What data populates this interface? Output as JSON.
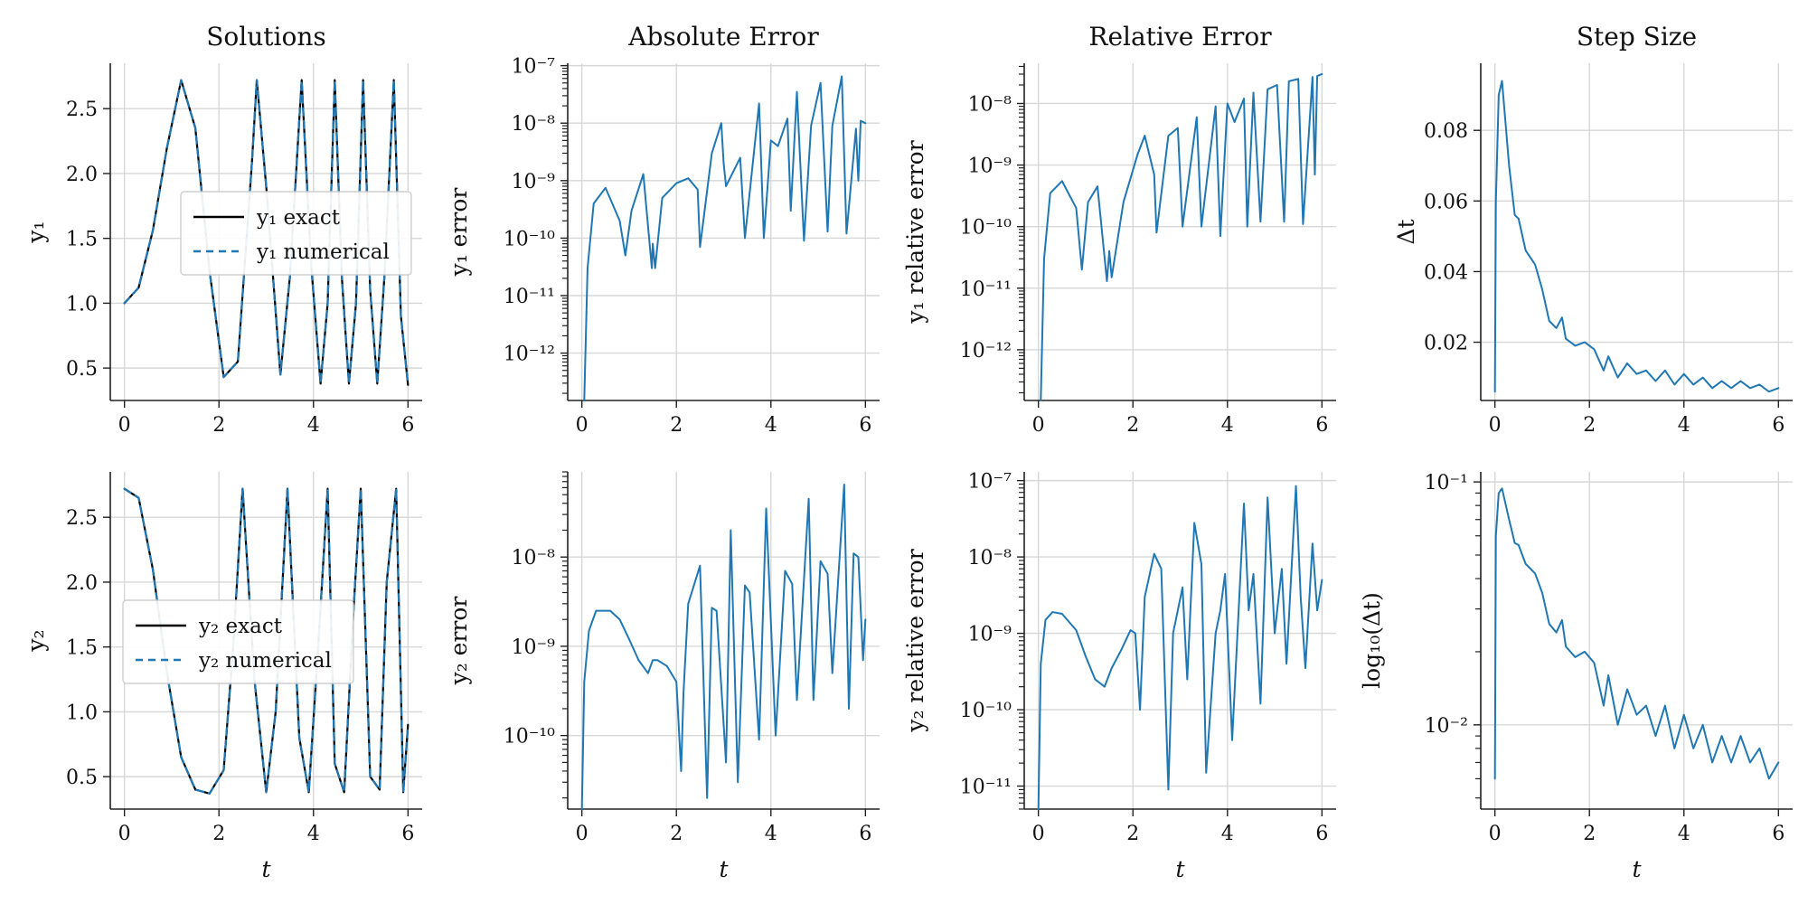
{
  "colors": {
    "series": "#1f77b4",
    "exact": "#000000",
    "grid": "#d7d7d7",
    "axis": "#222222"
  },
  "chart_data": [
    {
      "id": "solutions_y1",
      "type": "line",
      "title": "Solutions",
      "xlabel": "",
      "ylabel": "y₁",
      "xlim": [
        -0.3,
        6.3
      ],
      "ylim": [
        0.25,
        2.85
      ],
      "xticks": [
        0,
        2,
        4,
        6
      ],
      "xtick_labels": [
        "0",
        "2",
        "4",
        "6"
      ],
      "yticks": [
        0.5,
        1.0,
        1.5,
        2.0,
        2.5
      ],
      "ytick_labels": [
        "0.5",
        "1.0",
        "1.5",
        "2.0",
        "2.5"
      ],
      "grid": true,
      "legend_position": "center-right",
      "series": [
        {
          "name": "y₁ exact",
          "style": "solid",
          "color": "#000000",
          "x": [
            0.0,
            0.3,
            0.6,
            0.9,
            1.2,
            1.5,
            1.8,
            2.1,
            2.4,
            2.7,
            2.8,
            3.0,
            3.3,
            3.5,
            3.75,
            3.95,
            4.15,
            4.3,
            4.45,
            4.6,
            4.75,
            4.9,
            5.05,
            5.2,
            5.35,
            5.5,
            5.7,
            5.85,
            6.0
          ],
          "values": [
            1.0,
            1.12,
            1.56,
            2.2,
            2.72,
            2.35,
            1.25,
            0.43,
            0.55,
            2.1,
            2.72,
            1.9,
            0.45,
            1.2,
            2.72,
            1.3,
            0.38,
            1.0,
            2.72,
            1.2,
            0.38,
            1.0,
            2.72,
            1.1,
            0.38,
            1.2,
            2.72,
            0.9,
            0.37
          ]
        },
        {
          "name": "y₁ numerical",
          "style": "dashed",
          "color": "#1f77b4",
          "x": [
            0.0,
            0.3,
            0.6,
            0.9,
            1.2,
            1.5,
            1.8,
            2.1,
            2.4,
            2.7,
            2.8,
            3.0,
            3.3,
            3.5,
            3.75,
            3.95,
            4.15,
            4.3,
            4.45,
            4.6,
            4.75,
            4.9,
            5.05,
            5.2,
            5.35,
            5.5,
            5.7,
            5.85,
            6.0
          ],
          "values": [
            1.0,
            1.12,
            1.56,
            2.2,
            2.72,
            2.35,
            1.25,
            0.43,
            0.55,
            2.1,
            2.72,
            1.9,
            0.45,
            1.2,
            2.72,
            1.3,
            0.38,
            1.0,
            2.72,
            1.2,
            0.38,
            1.0,
            2.72,
            1.1,
            0.38,
            1.2,
            2.72,
            0.9,
            0.37
          ]
        }
      ]
    },
    {
      "id": "absolute_error_y1",
      "type": "line",
      "title": "Absolute Error",
      "xlabel": "",
      "ylabel": "y₁ error",
      "xlim": [
        -0.3,
        6.3
      ],
      "ylim": [
        1.5e-13,
        1.1e-07
      ],
      "log_y": true,
      "xticks": [
        0,
        2,
        4,
        6
      ],
      "xtick_labels": [
        "0",
        "2",
        "4",
        "6"
      ],
      "yticks": [
        1e-12,
        1e-11,
        1e-10,
        1e-09,
        1e-08,
        1e-07
      ],
      "ytick_labels": [
        "10⁻¹²",
        "10⁻¹¹",
        "10⁻¹⁰",
        "10⁻⁹",
        "10⁻⁸",
        "10⁻⁷"
      ],
      "grid": true,
      "series": [
        {
          "name": "",
          "color": "#1f77b4",
          "x": [
            0.05,
            0.12,
            0.25,
            0.5,
            0.8,
            0.92,
            1.05,
            1.3,
            1.48,
            1.5,
            1.55,
            1.7,
            2.0,
            2.25,
            2.45,
            2.5,
            2.75,
            2.95,
            3.0,
            3.05,
            3.35,
            3.45,
            3.75,
            3.85,
            4.0,
            4.15,
            4.35,
            4.42,
            4.55,
            4.7,
            4.85,
            5.05,
            5.2,
            5.3,
            5.5,
            5.6,
            5.8,
            5.85,
            5.9,
            6.0
          ],
          "values": [
            1.5e-13,
            3e-11,
            4e-10,
            7.5e-10,
            2e-10,
            5e-11,
            3e-10,
            1.3e-09,
            3e-11,
            8e-11,
            3e-11,
            5e-10,
            9e-10,
            1.1e-09,
            7e-10,
            7e-11,
            3e-09,
            1e-08,
            2e-09,
            8e-10,
            2.5e-09,
            1e-10,
            2.2e-08,
            1e-10,
            5e-09,
            4e-09,
            1.2e-08,
            3e-10,
            3.5e-08,
            9e-11,
            9e-09,
            5e-08,
            1.3e-10,
            9e-09,
            6.5e-08,
            1.2e-10,
            8e-09,
            1e-09,
            1.1e-08,
            1e-08
          ]
        }
      ]
    },
    {
      "id": "relative_error_y1",
      "type": "line",
      "title": "Relative Error",
      "xlabel": "",
      "ylabel": "y₁ relative error",
      "xlim": [
        -0.3,
        6.3
      ],
      "ylim": [
        1.5e-13,
        4.5e-08
      ],
      "log_y": true,
      "xticks": [
        0,
        2,
        4,
        6
      ],
      "xtick_labels": [
        "0",
        "2",
        "4",
        "6"
      ],
      "yticks": [
        1e-12,
        1e-11,
        1e-10,
        1e-09,
        1e-08
      ],
      "ytick_labels": [
        "10⁻¹²",
        "10⁻¹¹",
        "10⁻¹⁰",
        "10⁻⁹",
        "10⁻⁸"
      ],
      "grid": true,
      "series": [
        {
          "name": "",
          "color": "#1f77b4",
          "x": [
            0.05,
            0.12,
            0.25,
            0.5,
            0.8,
            0.92,
            1.05,
            1.25,
            1.45,
            1.5,
            1.55,
            1.8,
            2.1,
            2.25,
            2.45,
            2.5,
            2.75,
            2.95,
            3.05,
            3.35,
            3.45,
            3.75,
            3.85,
            4.0,
            4.15,
            4.35,
            4.42,
            4.55,
            4.7,
            4.85,
            5.05,
            5.2,
            5.3,
            5.5,
            5.6,
            5.8,
            5.85,
            5.9,
            6.0
          ],
          "values": [
            1.5e-13,
            3e-11,
            3.5e-10,
            5.5e-10,
            2e-10,
            2e-11,
            2.5e-10,
            4.5e-10,
            1.3e-11,
            4e-11,
            1.5e-11,
            2.5e-10,
            1.5e-09,
            3e-09,
            7e-10,
            8e-11,
            3e-09,
            4e-09,
            1e-10,
            6e-09,
            1e-10,
            9e-09,
            7e-11,
            1e-08,
            5e-09,
            1.2e-08,
            1e-10,
            1.5e-08,
            1.2e-10,
            1.7e-08,
            2e-08,
            1.2e-10,
            2.3e-08,
            2.5e-08,
            1.1e-10,
            2.7e-08,
            7e-10,
            2.8e-08,
            3e-08
          ]
        }
      ]
    },
    {
      "id": "step_size_top",
      "type": "line",
      "title": "Step Size",
      "xlabel": "",
      "ylabel": "Δt",
      "xlim": [
        -0.3,
        6.3
      ],
      "ylim": [
        0.0035,
        0.099
      ],
      "xticks": [
        0,
        2,
        4,
        6
      ],
      "xtick_labels": [
        "0",
        "2",
        "4",
        "6"
      ],
      "yticks": [
        0.02,
        0.04,
        0.06,
        0.08
      ],
      "ytick_labels": [
        "0.02",
        "0.04",
        "0.06",
        "0.08"
      ],
      "grid": true,
      "series": [
        {
          "name": "",
          "color": "#1f77b4",
          "x": [
            0.0,
            0.02,
            0.08,
            0.15,
            0.3,
            0.42,
            0.5,
            0.65,
            0.85,
            1.0,
            1.15,
            1.3,
            1.42,
            1.5,
            1.7,
            1.9,
            2.1,
            2.3,
            2.4,
            2.6,
            2.8,
            3.0,
            3.2,
            3.4,
            3.6,
            3.8,
            4.0,
            4.2,
            4.4,
            4.6,
            4.8,
            5.0,
            5.2,
            5.4,
            5.6,
            5.8,
            6.0
          ],
          "values": [
            0.006,
            0.06,
            0.09,
            0.094,
            0.07,
            0.056,
            0.055,
            0.046,
            0.042,
            0.035,
            0.026,
            0.024,
            0.027,
            0.021,
            0.019,
            0.02,
            0.018,
            0.012,
            0.016,
            0.01,
            0.014,
            0.011,
            0.012,
            0.009,
            0.012,
            0.008,
            0.011,
            0.008,
            0.01,
            0.007,
            0.009,
            0.007,
            0.009,
            0.007,
            0.008,
            0.006,
            0.007
          ]
        }
      ]
    },
    {
      "id": "solutions_y2",
      "type": "line",
      "title": "",
      "xlabel": "t",
      "ylabel": "y₂",
      "xlim": [
        -0.3,
        6.3
      ],
      "ylim": [
        0.25,
        2.85
      ],
      "xticks": [
        0,
        2,
        4,
        6
      ],
      "xtick_labels": [
        "0",
        "2",
        "4",
        "6"
      ],
      "yticks": [
        0.5,
        1.0,
        1.5,
        2.0,
        2.5
      ],
      "ytick_labels": [
        "0.5",
        "1.0",
        "1.5",
        "2.0",
        "2.5"
      ],
      "grid": true,
      "legend_position": "center-left",
      "series": [
        {
          "name": "y₂ exact",
          "style": "solid",
          "color": "#000000",
          "x": [
            0.0,
            0.3,
            0.6,
            0.9,
            1.2,
            1.5,
            1.8,
            2.1,
            2.3,
            2.5,
            2.75,
            3.0,
            3.2,
            3.45,
            3.7,
            3.9,
            4.1,
            4.3,
            4.45,
            4.65,
            4.85,
            5.0,
            5.2,
            5.4,
            5.55,
            5.75,
            5.9,
            6.0
          ],
          "values": [
            2.72,
            2.65,
            2.1,
            1.3,
            0.65,
            0.4,
            0.37,
            0.55,
            1.5,
            2.72,
            1.25,
            0.38,
            1.0,
            2.72,
            0.8,
            0.38,
            1.5,
            2.72,
            0.6,
            0.38,
            1.8,
            2.72,
            0.5,
            0.4,
            2.0,
            2.72,
            0.38,
            0.9
          ]
        },
        {
          "name": "y₂ numerical",
          "style": "dashed",
          "color": "#1f77b4",
          "x": [
            0.0,
            0.3,
            0.6,
            0.9,
            1.2,
            1.5,
            1.8,
            2.1,
            2.3,
            2.5,
            2.75,
            3.0,
            3.2,
            3.45,
            3.7,
            3.9,
            4.1,
            4.3,
            4.45,
            4.65,
            4.85,
            5.0,
            5.2,
            5.4,
            5.55,
            5.75,
            5.9,
            6.0
          ],
          "values": [
            2.72,
            2.65,
            2.1,
            1.3,
            0.65,
            0.4,
            0.37,
            0.55,
            1.5,
            2.72,
            1.25,
            0.38,
            1.0,
            2.72,
            0.8,
            0.38,
            1.5,
            2.72,
            0.6,
            0.38,
            1.8,
            2.72,
            0.5,
            0.4,
            2.0,
            2.72,
            0.38,
            0.9
          ]
        }
      ]
    },
    {
      "id": "absolute_error_y2",
      "type": "line",
      "title": "",
      "xlabel": "t",
      "ylabel": "y₂ error",
      "xlim": [
        -0.3,
        6.3
      ],
      "ylim": [
        1.5e-11,
        9e-08
      ],
      "log_y": true,
      "xticks": [
        0,
        2,
        4,
        6
      ],
      "xtick_labels": [
        "0",
        "2",
        "4",
        "6"
      ],
      "yticks": [
        1e-10,
        1e-09,
        1e-08
      ],
      "ytick_labels": [
        "10⁻¹⁰",
        "10⁻⁹",
        "10⁻⁸"
      ],
      "grid": true,
      "series": [
        {
          "name": "",
          "color": "#1f77b4",
          "x": [
            0.0,
            0.05,
            0.15,
            0.3,
            0.6,
            0.8,
            1.0,
            1.2,
            1.4,
            1.5,
            1.6,
            1.8,
            2.0,
            2.1,
            2.15,
            2.25,
            2.5,
            2.65,
            2.75,
            2.85,
            3.05,
            3.15,
            3.3,
            3.45,
            3.55,
            3.75,
            3.9,
            4.1,
            4.3,
            4.45,
            4.55,
            4.8,
            4.9,
            5.05,
            5.2,
            5.3,
            5.55,
            5.65,
            5.75,
            5.85,
            5.95,
            6.0
          ],
          "values": [
            1.5e-11,
            4e-10,
            1.5e-09,
            2.5e-09,
            2.5e-09,
            2e-09,
            1.2e-09,
            7e-10,
            5e-10,
            7e-10,
            7e-10,
            6e-10,
            4e-10,
            4e-11,
            3e-10,
            3e-09,
            8e-09,
            2e-11,
            2.7e-09,
            2.5e-09,
            5e-11,
            2e-08,
            3e-11,
            4.8e-09,
            4e-09,
            9e-11,
            3.5e-08,
            1e-10,
            7e-09,
            5e-09,
            2.5e-10,
            4.5e-08,
            2.5e-10,
            9e-09,
            6.5e-09,
            5e-10,
            6.5e-08,
            2e-10,
            1.1e-08,
            1e-08,
            7e-10,
            2e-09
          ]
        }
      ]
    },
    {
      "id": "relative_error_y2",
      "type": "line",
      "title": "",
      "xlabel": "t",
      "ylabel": "y₂ relative error",
      "xlim": [
        -0.3,
        6.3
      ],
      "ylim": [
        5e-12,
        1.3e-07
      ],
      "log_y": true,
      "xticks": [
        0,
        2,
        4,
        6
      ],
      "xtick_labels": [
        "0",
        "2",
        "4",
        "6"
      ],
      "yticks": [
        1e-11,
        1e-10,
        1e-09,
        1e-08,
        1e-07
      ],
      "ytick_labels": [
        "10⁻¹¹",
        "10⁻¹⁰",
        "10⁻⁹",
        "10⁻⁸",
        "10⁻⁷"
      ],
      "grid": true,
      "series": [
        {
          "name": "",
          "color": "#1f77b4",
          "x": [
            0.0,
            0.05,
            0.15,
            0.3,
            0.5,
            0.8,
            1.0,
            1.2,
            1.4,
            1.55,
            1.75,
            1.95,
            2.05,
            2.15,
            2.25,
            2.45,
            2.6,
            2.75,
            2.85,
            3.05,
            3.15,
            3.3,
            3.45,
            3.55,
            3.75,
            3.85,
            3.95,
            4.1,
            4.35,
            4.45,
            4.55,
            4.7,
            4.85,
            5.0,
            5.15,
            5.25,
            5.45,
            5.55,
            5.65,
            5.8,
            5.9,
            6.0
          ],
          "values": [
            5e-12,
            4e-10,
            1.5e-09,
            1.9e-09,
            1.8e-09,
            1.1e-09,
            5e-10,
            2.5e-10,
            2e-10,
            3.5e-10,
            6e-10,
            1.1e-09,
            1e-09,
            1e-10,
            3e-09,
            1.1e-08,
            7e-09,
            9e-12,
            1e-09,
            4e-09,
            2.5e-10,
            2.8e-08,
            8e-09,
            1.5e-11,
            1e-09,
            2e-09,
            6e-09,
            4e-11,
            5e-08,
            2e-09,
            6e-09,
            1.2e-10,
            6e-08,
            1e-09,
            7e-09,
            4e-10,
            8.5e-08,
            3e-09,
            3.5e-10,
            1.5e-08,
            2e-09,
            5e-09
          ]
        }
      ]
    },
    {
      "id": "step_size_bottom",
      "type": "line",
      "title": "",
      "xlabel": "t",
      "ylabel": "log₁₀(Δt)",
      "xlim": [
        -0.3,
        6.3
      ],
      "ylim": [
        0.0045,
        0.11
      ],
      "log_y": true,
      "xticks": [
        0,
        2,
        4,
        6
      ],
      "xtick_labels": [
        "0",
        "2",
        "4",
        "6"
      ],
      "yticks": [
        0.01,
        0.1
      ],
      "ytick_labels": [
        "10⁻²",
        "10⁻¹"
      ],
      "grid": true,
      "series": [
        {
          "name": "",
          "color": "#1f77b4",
          "x": [
            0.0,
            0.02,
            0.08,
            0.15,
            0.3,
            0.42,
            0.5,
            0.65,
            0.85,
            1.0,
            1.15,
            1.3,
            1.42,
            1.5,
            1.7,
            1.9,
            2.1,
            2.3,
            2.4,
            2.6,
            2.8,
            3.0,
            3.2,
            3.4,
            3.6,
            3.8,
            4.0,
            4.2,
            4.4,
            4.6,
            4.8,
            5.0,
            5.2,
            5.4,
            5.6,
            5.8,
            6.0
          ],
          "values": [
            0.006,
            0.06,
            0.09,
            0.094,
            0.07,
            0.056,
            0.055,
            0.046,
            0.042,
            0.035,
            0.026,
            0.024,
            0.027,
            0.021,
            0.019,
            0.02,
            0.018,
            0.012,
            0.016,
            0.01,
            0.014,
            0.011,
            0.012,
            0.009,
            0.012,
            0.008,
            0.011,
            0.008,
            0.01,
            0.007,
            0.009,
            0.007,
            0.009,
            0.007,
            0.008,
            0.006,
            0.007
          ]
        }
      ]
    }
  ]
}
